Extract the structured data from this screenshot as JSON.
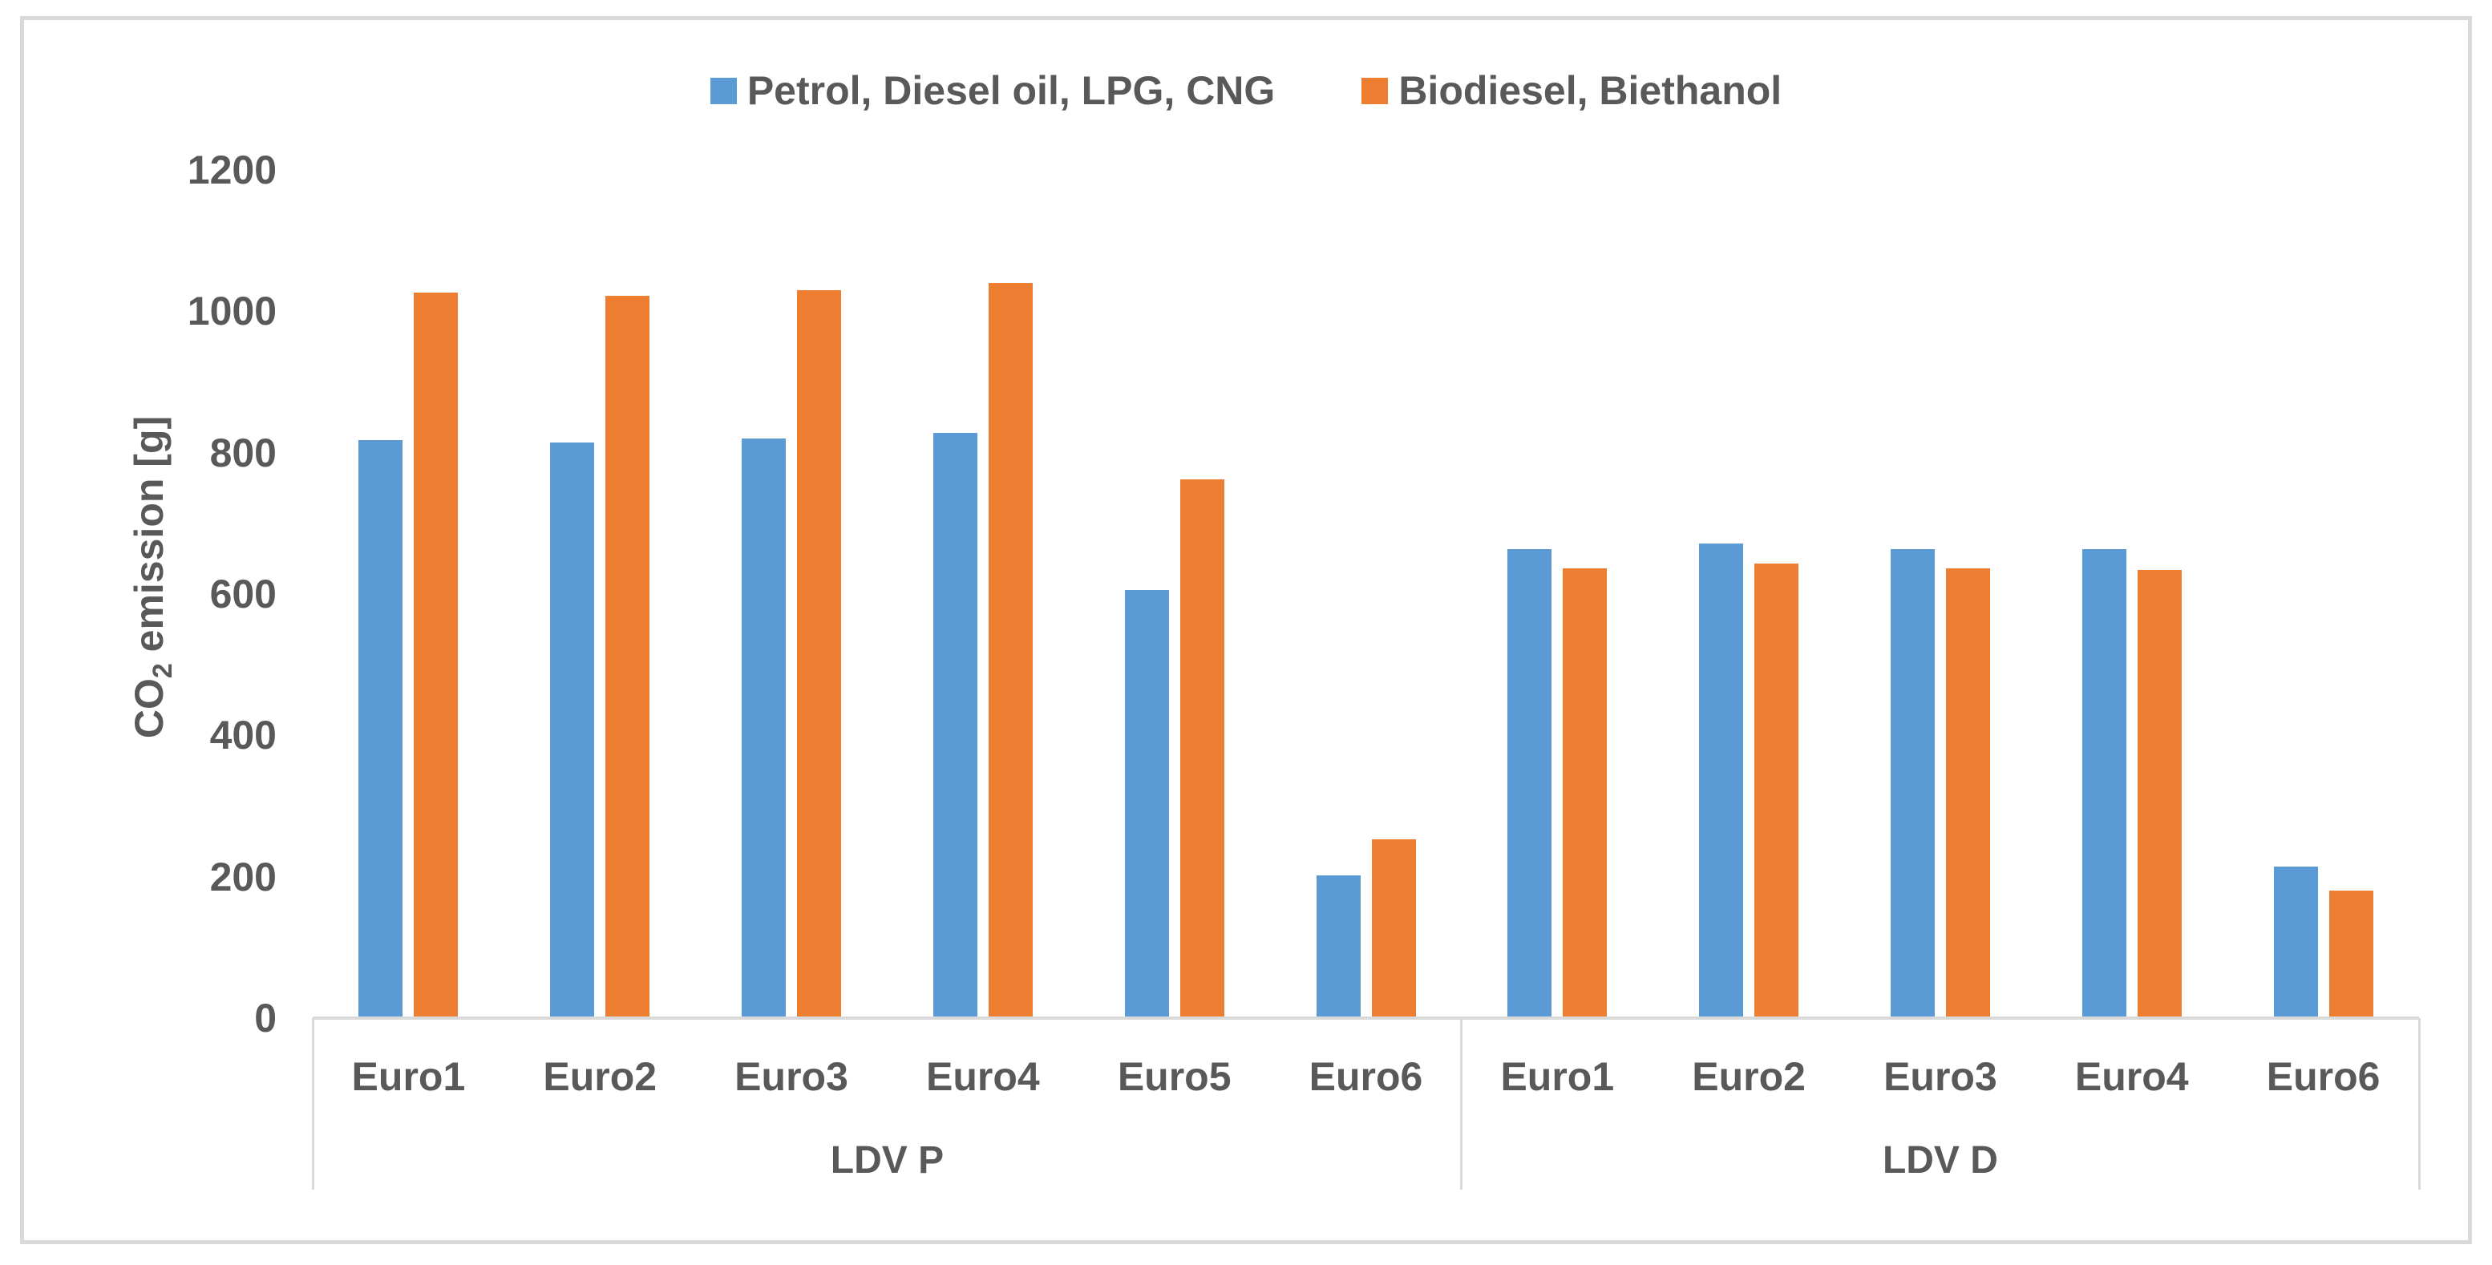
{
  "chart_data": {
    "type": "bar",
    "title": "",
    "ylabel": "CO2 emission [g]",
    "ylabel_prefix": "CO",
    "ylabel_sub": "2",
    "ylabel_suffix": " emission [g]",
    "ylim": [
      0,
      1200
    ],
    "yticks": [
      0,
      200,
      400,
      600,
      800,
      1000,
      1200
    ],
    "grid": false,
    "legend_position": "top-center",
    "bar_colors": {
      "petrol": "#5B9BD5",
      "biodiesel": "#ED7D31"
    },
    "text_color": "#595959",
    "line_color": "#D9D9D9",
    "legend": [
      {
        "label": "Petrol, Diesel oil, LPG, CNG",
        "color": "#5B9BD5"
      },
      {
        "label": "Biodiesel, Biethanol",
        "color": "#ED7D31"
      }
    ],
    "groups": [
      {
        "label": "LDV P",
        "categories": [
          "Euro1",
          "Euro2",
          "Euro3",
          "Euro4",
          "Euro5",
          "Euro6"
        ],
        "series": [
          {
            "name": "Petrol, Diesel oil, LPG, CNG",
            "values": [
              818,
              814,
              820,
              828,
              606,
              202
            ]
          },
          {
            "name": "Biodiesel, Biethanol",
            "values": [
              1026,
              1022,
              1030,
              1040,
              762,
              253
            ]
          }
        ]
      },
      {
        "label": "LDV D",
        "categories": [
          "Euro1",
          "Euro2",
          "Euro3",
          "Euro4",
          "Euro6"
        ],
        "series": [
          {
            "name": "Petrol, Diesel oil, LPG, CNG",
            "values": [
              664,
              671,
              664,
              663,
              214
            ]
          },
          {
            "name": "Biodiesel, Biethanol",
            "values": [
              636,
              643,
              636,
              634,
              180
            ]
          }
        ]
      }
    ]
  }
}
